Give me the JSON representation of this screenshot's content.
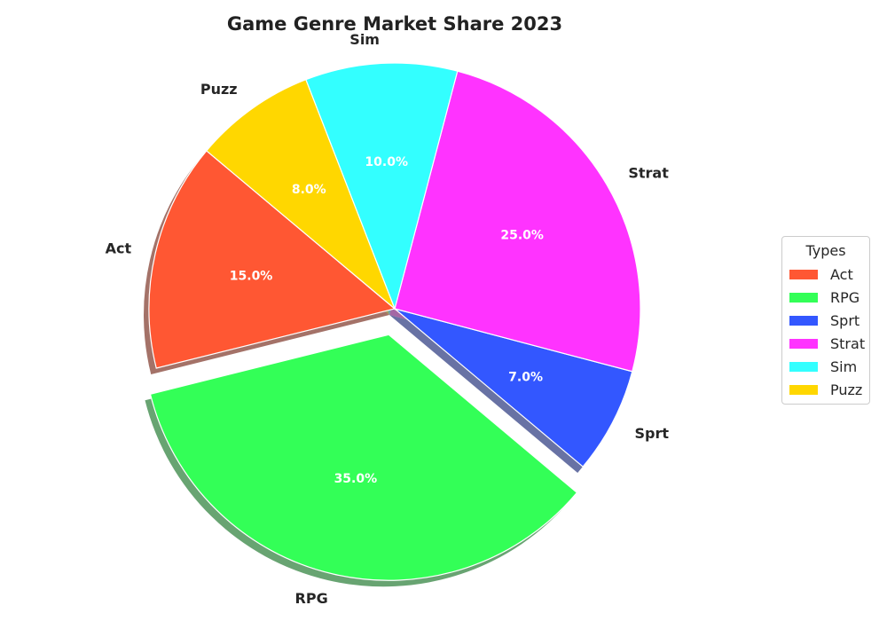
{
  "chart_data": {
    "type": "pie",
    "title": "Game Genre Market Share 2023",
    "slices": [
      {
        "label": "Act",
        "value": 15.0,
        "pct_label": "15.0%",
        "color": "#FF5733"
      },
      {
        "label": "RPG",
        "value": 35.0,
        "pct_label": "35.0%",
        "color": "#33FF57",
        "exploded": true
      },
      {
        "label": "Sprt",
        "value": 7.0,
        "pct_label": "7.0%",
        "color": "#3357FF"
      },
      {
        "label": "Strat",
        "value": 25.0,
        "pct_label": "25.0%",
        "color": "#FF33FF"
      },
      {
        "label": "Sim",
        "value": 10.0,
        "pct_label": "10.0%",
        "color": "#33FFFF"
      },
      {
        "label": "Puzz",
        "value": 8.0,
        "pct_label": "8.0%",
        "color": "#FFD700"
      }
    ],
    "shadow": true,
    "legend": {
      "title": "Types",
      "placement": "center-right"
    }
  }
}
